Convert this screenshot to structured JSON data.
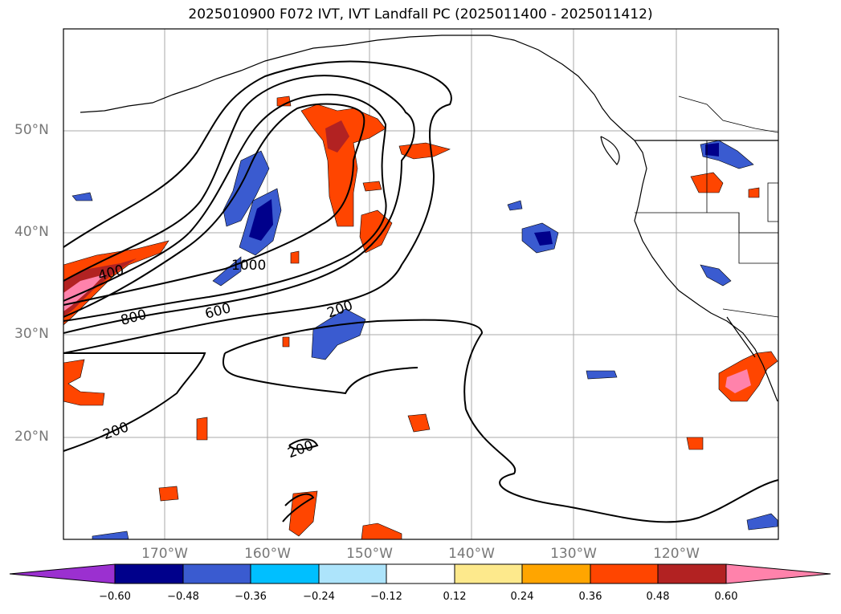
{
  "title": "2025010900 F072 IVT, IVT Landfall PC (2025011400 - 2025011412)",
  "lat_labels": [
    "50°N",
    "40°N",
    "30°N",
    "20°N"
  ],
  "lon_labels": [
    "170°W",
    "160°W",
    "150°W",
    "140°W",
    "130°W",
    "120°W"
  ],
  "contour_labels": [
    "1000",
    "800",
    "600",
    "400",
    "200",
    "200",
    "200"
  ],
  "colorbar": {
    "ticks": [
      "−0.60",
      "−0.48",
      "−0.36",
      "−0.24",
      "−0.12",
      "0.12",
      "0.24",
      "0.36",
      "0.48",
      "0.60"
    ],
    "colors": {
      "under": "#9b30d0",
      "bins": [
        "#00008b",
        "#3a5bd0",
        "#00bfff",
        "#ade4fb",
        "#ffffff",
        "#fde98c",
        "#ffa500",
        "#ff4500",
        "#b22222",
        "#ff82ab"
      ],
      "over": "#ff82ab"
    }
  },
  "colors": {
    "coast": "#000000",
    "grid": "#aaaaaa",
    "label_text": "#777777"
  }
}
